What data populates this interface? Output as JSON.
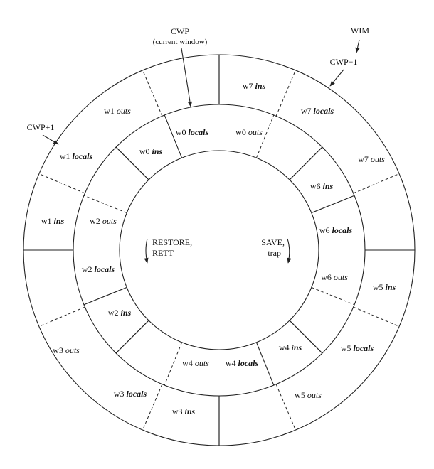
{
  "labels": {
    "w0_locals": {
      "n": "w0 ",
      "k": "locals"
    },
    "w0_ins": {
      "n": "w0 ",
      "k": "ins"
    },
    "w0_outs": {
      "n": "w0 ",
      "k": "outs"
    },
    "w1_outs": {
      "n": "w1 ",
      "k": "outs"
    },
    "w1_locals": {
      "n": "w1 ",
      "k": "locals"
    },
    "w1_ins": {
      "n": "w1 ",
      "k": "ins"
    },
    "w2_outs": {
      "n": "w2 ",
      "k": "outs"
    },
    "w2_locals": {
      "n": "w2 ",
      "k": "locals"
    },
    "w2_ins": {
      "n": "w2 ",
      "k": "ins"
    },
    "w3_outs": {
      "n": "w3 ",
      "k": "outs"
    },
    "w3_locals": {
      "n": "w3 ",
      "k": "locals"
    },
    "w3_ins": {
      "n": "w3 ",
      "k": "ins"
    },
    "w4_outs": {
      "n": "w4 ",
      "k": "outs"
    },
    "w4_locals": {
      "n": "w4 ",
      "k": "locals"
    },
    "w4_ins": {
      "n": "w4 ",
      "k": "ins"
    },
    "w5_outs": {
      "n": "w5 ",
      "k": "outs"
    },
    "w5_locals": {
      "n": "w5 ",
      "k": "locals"
    },
    "w5_ins": {
      "n": "w5 ",
      "k": "ins"
    },
    "w6_outs": {
      "n": "w6 ",
      "k": "outs"
    },
    "w6_locals": {
      "n": "w6 ",
      "k": "locals"
    },
    "w6_ins": {
      "n": "w6 ",
      "k": "ins"
    },
    "w7_outs": {
      "n": "w7 ",
      "k": "outs"
    },
    "w7_locals": {
      "n": "w7 ",
      "k": "locals"
    },
    "w7_ins": {
      "n": "w7 ",
      "k": "ins"
    }
  },
  "annotations": {
    "cwp": "CWP",
    "cwp_sub": "(current window)",
    "wim": "WIM",
    "cwp_minus_1": "CWP−1",
    "cwp_plus_1": "CWP+1",
    "restore_1": "RESTORE,",
    "restore_2": "RETT",
    "save_1": "SAVE,",
    "save_2": "trap"
  }
}
